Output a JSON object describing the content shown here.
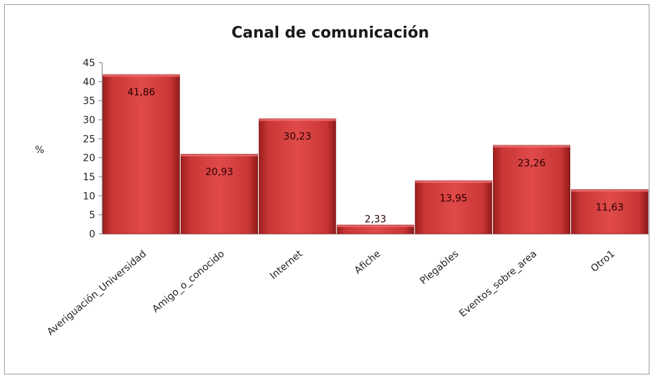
{
  "chart_data": {
    "type": "bar",
    "title": "Canal de comunicación",
    "ylabel": "%",
    "xlabel": "",
    "ylim": [
      0,
      45
    ],
    "yticks": [
      0,
      5,
      10,
      15,
      20,
      25,
      30,
      35,
      40,
      45
    ],
    "grid": false,
    "legend": "none",
    "bar_color": "#d23a3a",
    "categories": [
      "Averiguación_Universidad",
      "Amigo_o_conocido",
      "Internet",
      "Afiche",
      "Plegables",
      "Eventos_sobre_area",
      "Otro1"
    ],
    "values": [
      41.86,
      20.93,
      30.23,
      2.33,
      13.95,
      23.26,
      11.63
    ],
    "value_labels": [
      "41,86",
      "20,93",
      "30,23",
      "2,33",
      "13,95",
      "23,26",
      "11,63"
    ]
  }
}
